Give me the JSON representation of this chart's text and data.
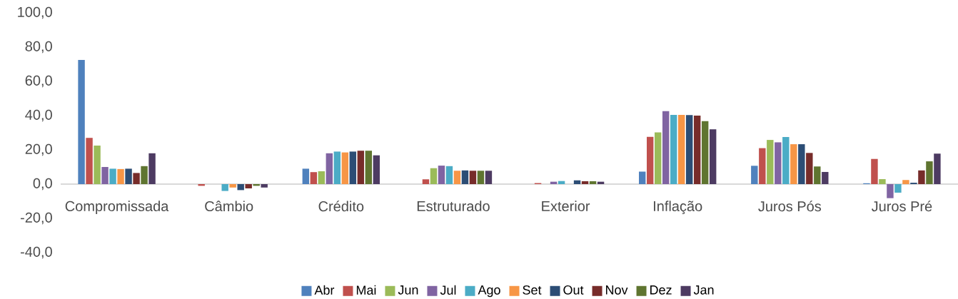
{
  "chart_data": {
    "type": "bar",
    "categories": [
      "Compromissada",
      "Câmbio",
      "Crédito",
      "Estruturado",
      "Exterior",
      "Inflação",
      "Juros Pós",
      "Juros Pré"
    ],
    "series": [
      {
        "name": "Abr",
        "color": "#4f81bd",
        "values": [
          72.5,
          0,
          9,
          0,
          0,
          7.3,
          10.7,
          0.5
        ]
      },
      {
        "name": "Mai",
        "color": "#c0504d",
        "values": [
          27,
          -1,
          7,
          2.8,
          0.6,
          27.6,
          21,
          14.7
        ]
      },
      {
        "name": "Jun",
        "color": "#9bbb59",
        "values": [
          22.5,
          null,
          7.5,
          9.3,
          null,
          30.2,
          25.8,
          2.9
        ]
      },
      {
        "name": "Jul",
        "color": "#8064a2",
        "values": [
          10,
          0,
          18,
          10.8,
          1.4,
          42.6,
          24.4,
          -8.2
        ]
      },
      {
        "name": "Ago",
        "color": "#4bacc6",
        "values": [
          9,
          -4,
          19,
          10.5,
          1.8,
          40.4,
          27.5,
          -5
        ]
      },
      {
        "name": "Set",
        "color": "#f79646",
        "values": [
          8.8,
          -2,
          18.5,
          7.8,
          0,
          40.4,
          23.3,
          2.4
        ]
      },
      {
        "name": "Out",
        "color": "#2c4d75",
        "values": [
          9,
          -3.5,
          19,
          8,
          2.2,
          40.3,
          23.3,
          0.8
        ]
      },
      {
        "name": "Nov",
        "color": "#772c2a",
        "values": [
          6.5,
          -2.5,
          19.5,
          7.8,
          1.7,
          40,
          18.2,
          8
        ]
      },
      {
        "name": "Dez",
        "color": "#5f7530",
        "values": [
          10.5,
          -1,
          19.5,
          7.8,
          1.7,
          36.8,
          10.3,
          13.3
        ]
      },
      {
        "name": "Jan",
        "color": "#4d3b62",
        "values": [
          18,
          -2,
          16.8,
          7.8,
          1.4,
          32,
          7.1,
          17.8
        ]
      }
    ],
    "ylim": [
      -40,
      100
    ],
    "yticks": [
      {
        "value": -40,
        "label": "-40,0"
      },
      {
        "value": -20,
        "label": "-20,0"
      },
      {
        "value": 0,
        "label": "0,0"
      },
      {
        "value": 20,
        "label": "20,0"
      },
      {
        "value": 40,
        "label": "40,0"
      },
      {
        "value": 60,
        "label": "60,0"
      },
      {
        "value": 80,
        "label": "80,0"
      },
      {
        "value": 100,
        "label": "100,0"
      }
    ],
    "legend": "bottom"
  }
}
